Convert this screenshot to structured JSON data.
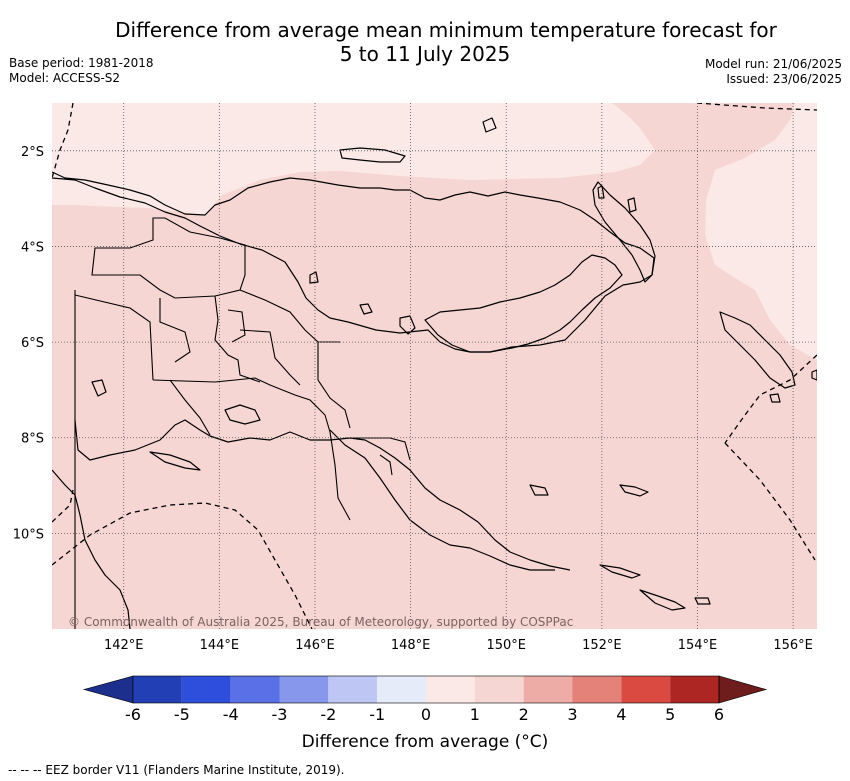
{
  "title": {
    "line1": "Difference from average mean minimum temperature forecast for",
    "line2": "5 to 11 July 2025"
  },
  "meta": {
    "base_period": "Base period: 1981-2018",
    "model": "Model: ACCESS-S2",
    "model_run": "Model run: 21/06/2025",
    "issued": "Issued: 23/06/2025"
  },
  "map": {
    "lon_range": [
      140.5,
      156.5
    ],
    "lat_range": [
      -12,
      -1
    ],
    "lat_ticks": [
      {
        "value": -2,
        "label": "2°S"
      },
      {
        "value": -4,
        "label": "4°S"
      },
      {
        "value": -6,
        "label": "6°S"
      },
      {
        "value": -8,
        "label": "8°S"
      },
      {
        "value": -10,
        "label": "10°S"
      }
    ],
    "lon_ticks": [
      {
        "value": 142,
        "label": "142°E"
      },
      {
        "value": 144,
        "label": "144°E"
      },
      {
        "value": 146,
        "label": "146°E"
      },
      {
        "value": 148,
        "label": "148°E"
      },
      {
        "value": 150,
        "label": "150°E"
      },
      {
        "value": 152,
        "label": "152°E"
      },
      {
        "value": 154,
        "label": "154°E"
      },
      {
        "value": 156,
        "label": "156°E"
      }
    ],
    "gridlines": true,
    "fill_colors": {
      "zero_to_one": "#fbe9e7",
      "one_to_two": "#f6d6d3"
    },
    "copyright": "© Commonwealth of Australia 2025, Bureau of Meteorology, supported by COSPPac"
  },
  "colorbar": {
    "ticks": [
      "-6",
      "-5",
      "-4",
      "-3",
      "-2",
      "-1",
      "0",
      "1",
      "2",
      "3",
      "4",
      "5",
      "6"
    ],
    "colors": [
      "#1c2f8c",
      "#233fb5",
      "#2e4fdc",
      "#5a70e6",
      "#8797ec",
      "#bec7f4",
      "#e6ebfa",
      "#fbe9e7",
      "#f6d6d3",
      "#eeaca6",
      "#e48179",
      "#da4a40",
      "#ad2623",
      "#6f1c1c"
    ],
    "label": "Difference from average (°C)"
  },
  "footnote": "--  --  -- EEZ border V11 (Flanders Marine Institute, 2019)."
}
